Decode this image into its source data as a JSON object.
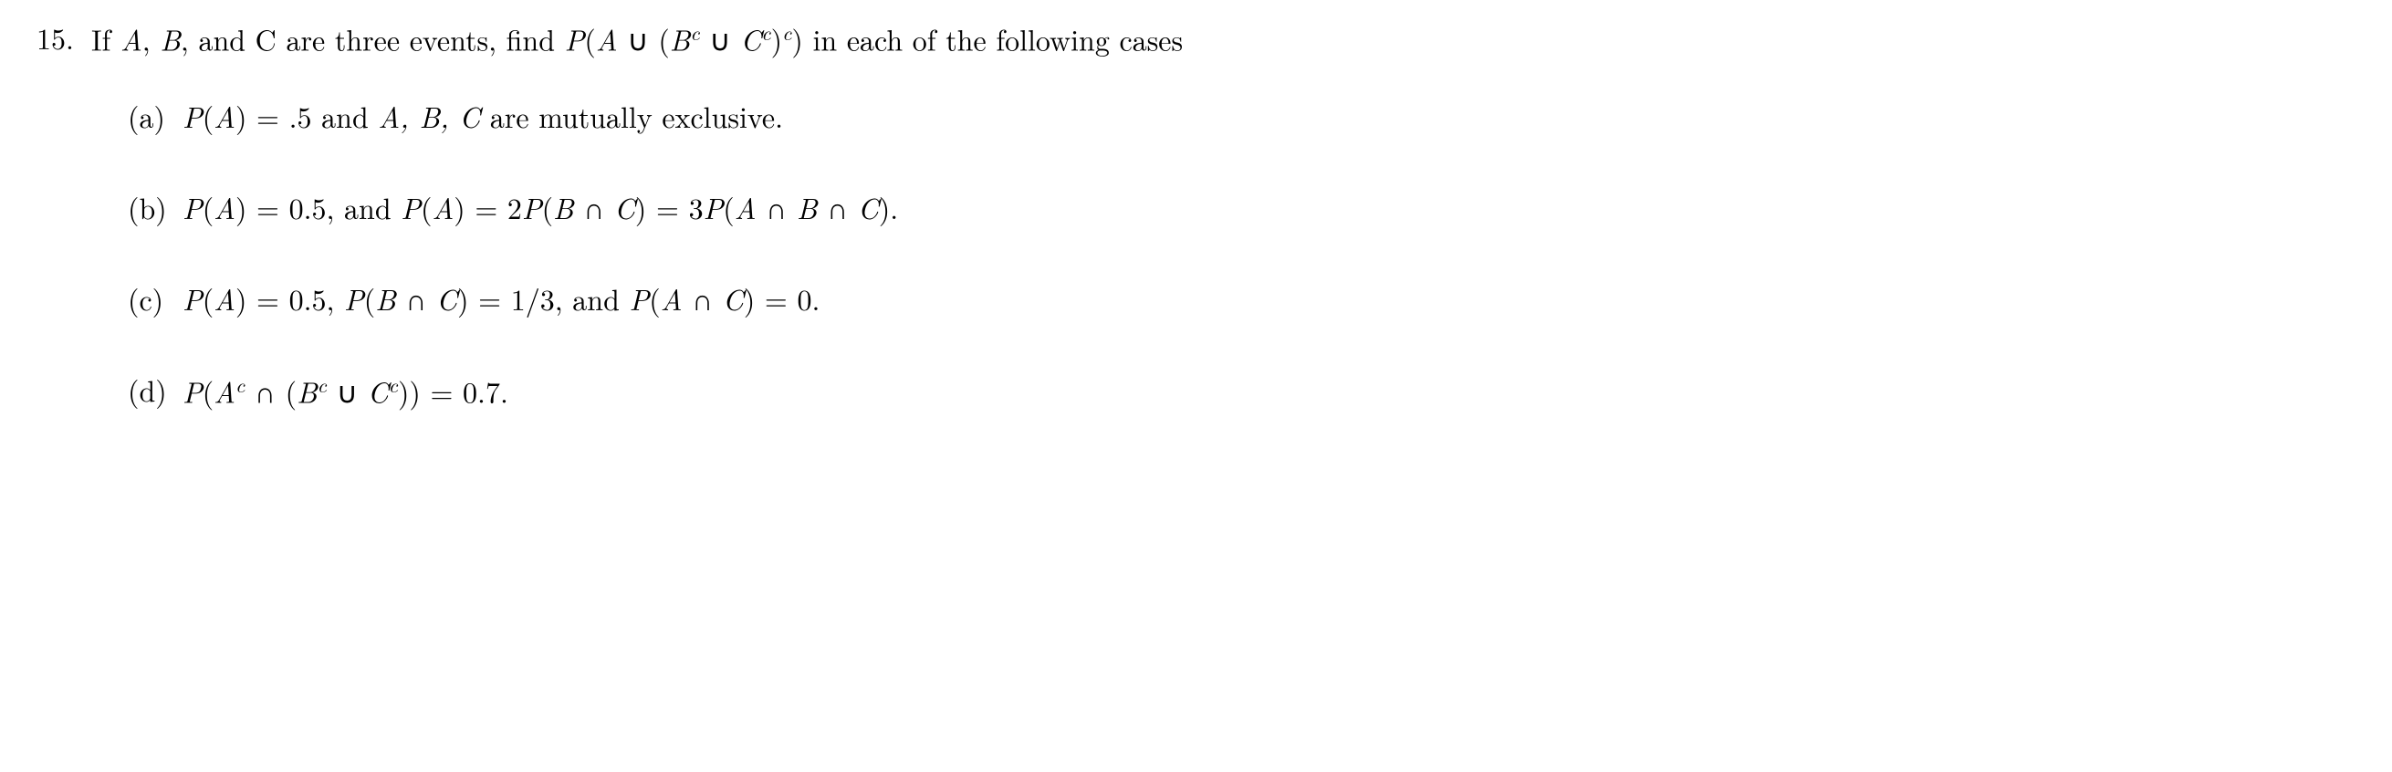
{
  "problem": {
    "number": "15.",
    "text_parts": {
      "p1": "If ",
      "p2": "A",
      "p3": ", ",
      "p4": "B",
      "p5": ", and C are three events, find ",
      "p6": "P",
      "p7": "(",
      "p8": "A",
      "p9": " ∪ (",
      "p10": "B",
      "p11": "c",
      "p12": " ∪ ",
      "p13": "C",
      "p14": "c",
      "p15": ")",
      "p16": "c",
      "p17": ") in each of the following cases"
    }
  },
  "parts": {
    "a": {
      "label": "(a)",
      "t1": "P",
      "t2": "(",
      "t3": "A",
      "t4": ") = .5 and ",
      "t5": "A, B, C",
      "t6": " are mutually exclusive."
    },
    "b": {
      "label": "(b)",
      "t1": "P",
      "t2": "(",
      "t3": "A",
      "t4": ") = 0.5, and ",
      "t5": "P",
      "t6": "(",
      "t7": "A",
      "t8": ") = 2",
      "t9": "P",
      "t10": "(",
      "t11": "B",
      "t12": " ∩ ",
      "t13": "C",
      "t14": ") = 3",
      "t15": "P",
      "t16": "(",
      "t17": "A",
      "t18": " ∩ ",
      "t19": "B",
      "t20": " ∩ ",
      "t21": "C",
      "t22": ")."
    },
    "c": {
      "label": "(c)",
      "t1": "P",
      "t2": "(",
      "t3": "A",
      "t4": ") = 0.5, ",
      "t5": "P",
      "t6": "(",
      "t7": "B",
      "t8": " ∩ ",
      "t9": "C",
      "t10": ") = 1/3, and ",
      "t11": "P",
      "t12": "(",
      "t13": "A",
      "t14": " ∩ ",
      "t15": "C",
      "t16": ") = 0."
    },
    "d": {
      "label": "(d)",
      "t1": "P",
      "t2": "(",
      "t3": "A",
      "t4": "c",
      "t5": " ∩ (",
      "t6": "B",
      "t7": "c",
      "t8": " ∪ ",
      "t9": "C",
      "t10": "c",
      "t11": ")) = 0.7."
    }
  }
}
